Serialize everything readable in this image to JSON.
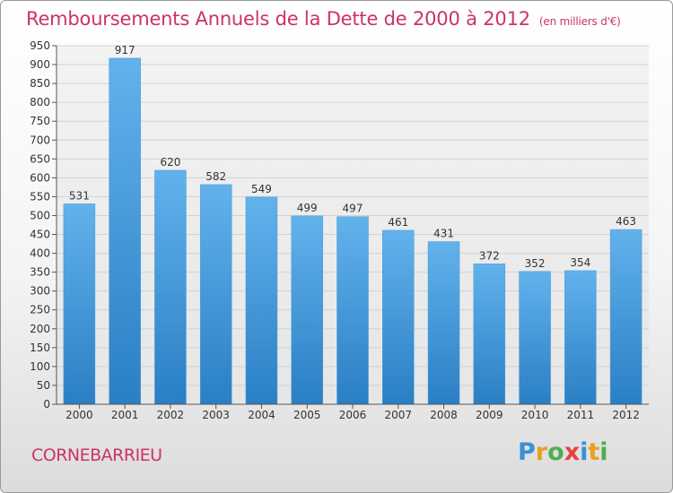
{
  "title": "Remboursements Annuels de la Dette de 2000 à 2012",
  "subtitle": "(en milliers d'€)",
  "city": "CORNEBARRIEU",
  "logo": {
    "letters": [
      "P",
      "r",
      "o",
      "x",
      "i",
      "t",
      "i"
    ],
    "colors": [
      "#3a8fd6",
      "#e8a020",
      "#4caf50",
      "#e84040",
      "#3a8fd6",
      "#e8a020",
      "#4caf50"
    ]
  },
  "colors": {
    "bar_top": "#62b2ec",
    "bar_bottom": "#2a7fc4",
    "text_accent": "#cc3366"
  },
  "chart_data": {
    "type": "bar",
    "title": "Remboursements Annuels de la Dette de 2000 à 2012",
    "subtitle": "(en milliers d'€)",
    "categories": [
      "2000",
      "2001",
      "2002",
      "2003",
      "2004",
      "2005",
      "2006",
      "2007",
      "2008",
      "2009",
      "2010",
      "2011",
      "2012"
    ],
    "values": [
      531,
      917,
      620,
      582,
      549,
      499,
      497,
      461,
      431,
      372,
      352,
      354,
      463
    ],
    "ylim": [
      0,
      950
    ],
    "yticks": [
      0,
      50,
      100,
      150,
      200,
      250,
      300,
      350,
      400,
      450,
      500,
      550,
      600,
      650,
      700,
      750,
      800,
      850,
      900,
      950
    ],
    "grid": true,
    "data_labels": true
  }
}
